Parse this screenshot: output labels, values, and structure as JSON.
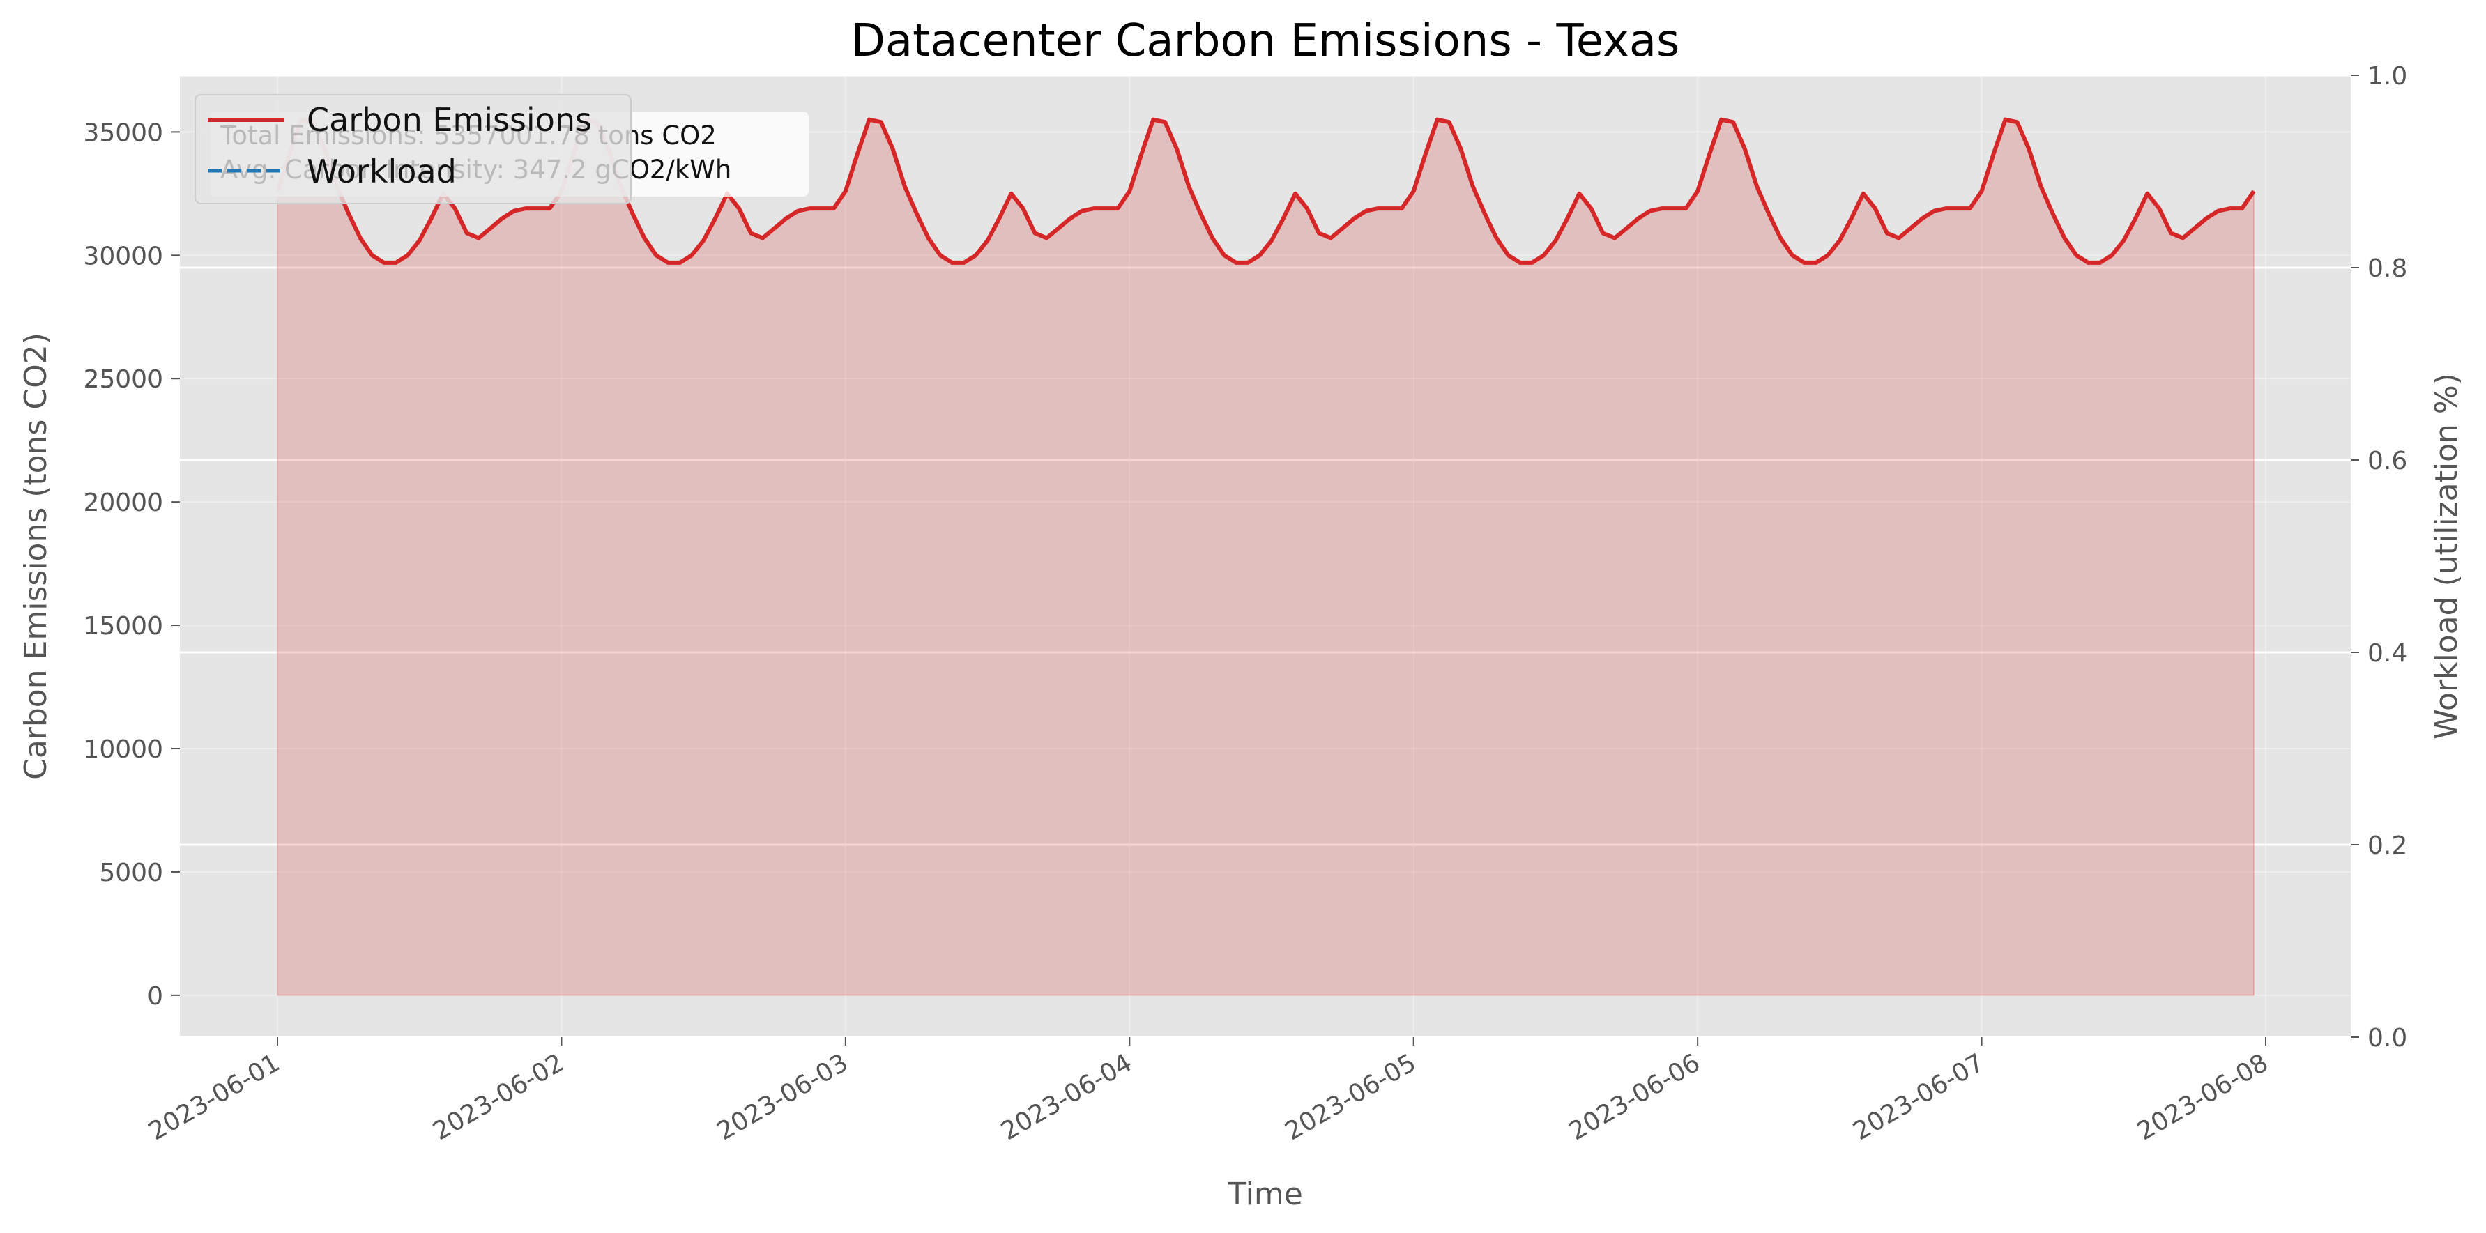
{
  "chart_data": {
    "type": "line",
    "title": "Datacenter Carbon Emissions - Texas",
    "xlabel": "Time",
    "ylabel": "Carbon Emissions (tons CO2)",
    "y2label": "Workload (utilization %)",
    "ylim": [
      -1700,
      37300
    ],
    "y2lim": [
      0.0,
      1.0
    ],
    "yticks": [
      "0",
      "5000",
      "10000",
      "15000",
      "20000",
      "25000",
      "30000",
      "35000"
    ],
    "y2ticks": [
      "0.0",
      "0.2",
      "0.4",
      "0.6",
      "0.8",
      "1.0"
    ],
    "xticks": [
      "2023-06-01",
      "2023-06-02",
      "2023-06-03",
      "2023-06-04",
      "2023-06-05",
      "2023-06-06",
      "2023-06-07",
      "2023-06-08"
    ],
    "x_start": "2023-06-01",
    "x_interval_hours": 1,
    "grid": true,
    "legend_position": "upper-left",
    "series": [
      {
        "name": "Carbon Emissions",
        "color": "#d62728",
        "fill": true,
        "values": [
          32600,
          34100,
          35500,
          35400,
          34300,
          32800,
          31700,
          30700,
          30000,
          29700,
          29700,
          30000,
          30600,
          31500,
          32500,
          31900,
          30900,
          30700,
          31100,
          31500,
          31800,
          31900,
          31900,
          31900,
          32600,
          34100,
          35500,
          35400,
          34300,
          32800,
          31700,
          30700,
          30000,
          29700,
          29700,
          30000,
          30600,
          31500,
          32500,
          31900,
          30900,
          30700,
          31100,
          31500,
          31800,
          31900,
          31900,
          31900,
          32600,
          34100,
          35500,
          35400,
          34300,
          32800,
          31700,
          30700,
          30000,
          29700,
          29700,
          30000,
          30600,
          31500,
          32500,
          31900,
          30900,
          30700,
          31100,
          31500,
          31800,
          31900,
          31900,
          31900,
          32600,
          34100,
          35500,
          35400,
          34300,
          32800,
          31700,
          30700,
          30000,
          29700,
          29700,
          30000,
          30600,
          31500,
          32500,
          31900,
          30900,
          30700,
          31100,
          31500,
          31800,
          31900,
          31900,
          31900,
          32600,
          34100,
          35500,
          35400,
          34300,
          32800,
          31700,
          30700,
          30000,
          29700,
          29700,
          30000,
          30600,
          31500,
          32500,
          31900,
          30900,
          30700,
          31100,
          31500,
          31800,
          31900,
          31900,
          31900,
          32600,
          34100,
          35500,
          35400,
          34300,
          32800,
          31700,
          30700,
          30000,
          29700,
          29700,
          30000,
          30600,
          31500,
          32500,
          31900,
          30900,
          30700,
          31100,
          31500,
          31800,
          31900,
          31900,
          31900,
          32600,
          34100,
          35500,
          35400,
          34300,
          32800,
          31700,
          30700,
          30000,
          29700,
          29700,
          30000,
          30600,
          31500,
          32500,
          31900,
          30900,
          30700,
          31100,
          31500,
          31800,
          31900,
          31900,
          32600
        ]
      },
      {
        "name": "Workload",
        "color": "#1f77b4",
        "values": []
      }
    ],
    "annotations": [
      "Total Emissions: 5357001.78 tons CO2",
      "Avg. Carbon Intensity: 347.2 gCO2/kWh"
    ]
  }
}
